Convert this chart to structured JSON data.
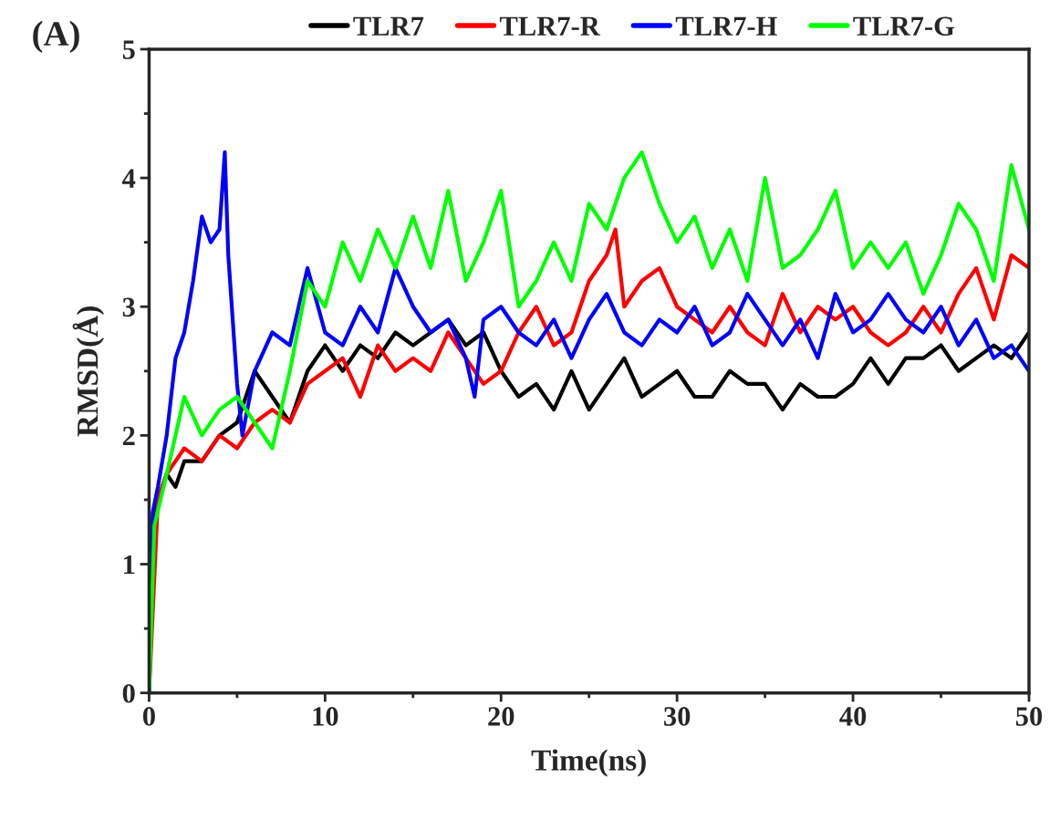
{
  "chart_data": {
    "type": "line",
    "title": "(A)",
    "xlabel": "Time(ns)",
    "ylabel": "RMSD(Å)",
    "xlim": [
      0,
      50
    ],
    "xticks": [
      0,
      10,
      20,
      30,
      40,
      50
    ],
    "ylim": [
      0,
      5
    ],
    "yticks": [
      0,
      1,
      2,
      3,
      4,
      5
    ],
    "grid": false,
    "legend": "top",
    "marker": "none",
    "line_style": "solid",
    "series": [
      {
        "name": "TLR7",
        "color": "#000000",
        "x": [
          0,
          0.2,
          0.5,
          1,
          1.5,
          2,
          3,
          4,
          5,
          6,
          7,
          8,
          9,
          10,
          11,
          12,
          13,
          14,
          15,
          16,
          17,
          18,
          19,
          20,
          21,
          22,
          23,
          24,
          25,
          26,
          27,
          28,
          29,
          30,
          31,
          32,
          33,
          34,
          35,
          36,
          37,
          38,
          39,
          40,
          41,
          42,
          43,
          44,
          45,
          46,
          47,
          48,
          49,
          50
        ],
        "values": [
          0,
          1.2,
          1.5,
          1.7,
          1.6,
          1.8,
          1.8,
          2.0,
          2.1,
          2.5,
          2.3,
          2.1,
          2.5,
          2.7,
          2.5,
          2.7,
          2.6,
          2.8,
          2.7,
          2.8,
          2.9,
          2.7,
          2.8,
          2.5,
          2.3,
          2.4,
          2.2,
          2.5,
          2.2,
          2.4,
          2.6,
          2.3,
          2.4,
          2.5,
          2.3,
          2.3,
          2.5,
          2.4,
          2.4,
          2.2,
          2.4,
          2.3,
          2.3,
          2.4,
          2.6,
          2.4,
          2.6,
          2.6,
          2.7,
          2.5,
          2.6,
          2.7,
          2.6,
          2.8
        ]
      },
      {
        "name": "TLR7-R",
        "color": "#ff0000",
        "x": [
          0,
          0.5,
          1,
          2,
          3,
          4,
          5,
          6,
          7,
          8,
          9,
          10,
          11,
          12,
          13,
          14,
          15,
          16,
          17,
          18,
          19,
          20,
          21,
          22,
          23,
          24,
          25,
          26,
          26.5,
          27,
          28,
          29,
          30,
          31,
          32,
          33,
          34,
          35,
          36,
          37,
          38,
          39,
          40,
          41,
          42,
          43,
          44,
          45,
          46,
          47,
          48,
          49,
          50
        ],
        "values": [
          0,
          1.5,
          1.7,
          1.9,
          1.8,
          2.0,
          1.9,
          2.1,
          2.2,
          2.1,
          2.4,
          2.5,
          2.6,
          2.3,
          2.7,
          2.5,
          2.6,
          2.5,
          2.8,
          2.6,
          2.4,
          2.5,
          2.8,
          3.0,
          2.7,
          2.8,
          3.2,
          3.4,
          3.6,
          3.0,
          3.2,
          3.3,
          3.0,
          2.9,
          2.8,
          3.0,
          2.8,
          2.7,
          3.1,
          2.8,
          3.0,
          2.9,
          3.0,
          2.8,
          2.7,
          2.8,
          3.0,
          2.8,
          3.1,
          3.3,
          2.9,
          3.4,
          3.3
        ]
      },
      {
        "name": "TLR7-H",
        "color": "#0000ff",
        "x": [
          0,
          0.2,
          0.5,
          1,
          1.5,
          2,
          2.5,
          3,
          3.5,
          4,
          4.3,
          4.5,
          5,
          5.3,
          6,
          7,
          8,
          9,
          10,
          11,
          12,
          13,
          14,
          15,
          16,
          17,
          18,
          18.5,
          19,
          20,
          21,
          22,
          23,
          24,
          25,
          26,
          27,
          28,
          29,
          30,
          31,
          32,
          33,
          34,
          35,
          36,
          37,
          38,
          39,
          40,
          41,
          42,
          43,
          44,
          45,
          46,
          47,
          48,
          49,
          50
        ],
        "values": [
          0,
          1.4,
          1.6,
          2.0,
          2.6,
          2.8,
          3.2,
          3.7,
          3.5,
          3.6,
          4.2,
          3.4,
          2.4,
          2.0,
          2.5,
          2.8,
          2.7,
          3.3,
          2.8,
          2.7,
          3.0,
          2.8,
          3.3,
          3.0,
          2.8,
          2.9,
          2.6,
          2.3,
          2.9,
          3.0,
          2.8,
          2.7,
          2.9,
          2.6,
          2.9,
          3.1,
          2.8,
          2.7,
          2.9,
          2.8,
          3.0,
          2.7,
          2.8,
          3.1,
          2.9,
          2.7,
          2.9,
          2.6,
          3.1,
          2.8,
          2.9,
          3.1,
          2.9,
          2.8,
          3.0,
          2.7,
          2.9,
          2.6,
          2.7,
          2.5
        ]
      },
      {
        "name": "TLR7-G",
        "color": "#00ff00",
        "x": [
          0,
          0.3,
          1,
          2,
          3,
          4,
          5,
          6,
          7,
          8,
          9,
          10,
          11,
          12,
          13,
          14,
          15,
          16,
          17,
          18,
          19,
          20,
          21,
          22,
          23,
          24,
          25,
          26,
          27,
          28,
          29,
          30,
          31,
          32,
          33,
          34,
          35,
          36,
          37,
          38,
          39,
          40,
          41,
          42,
          43,
          44,
          45,
          46,
          47,
          48,
          49,
          50
        ],
        "values": [
          0,
          1.3,
          1.7,
          2.3,
          2.0,
          2.2,
          2.3,
          2.1,
          1.9,
          2.5,
          3.2,
          3.0,
          3.5,
          3.2,
          3.6,
          3.3,
          3.7,
          3.3,
          3.9,
          3.2,
          3.5,
          3.9,
          3.0,
          3.2,
          3.5,
          3.2,
          3.8,
          3.6,
          4.0,
          4.2,
          3.8,
          3.5,
          3.7,
          3.3,
          3.6,
          3.2,
          4.0,
          3.3,
          3.4,
          3.6,
          3.9,
          3.3,
          3.5,
          3.3,
          3.5,
          3.1,
          3.4,
          3.8,
          3.6,
          3.2,
          4.1,
          3.6
        ]
      }
    ]
  }
}
